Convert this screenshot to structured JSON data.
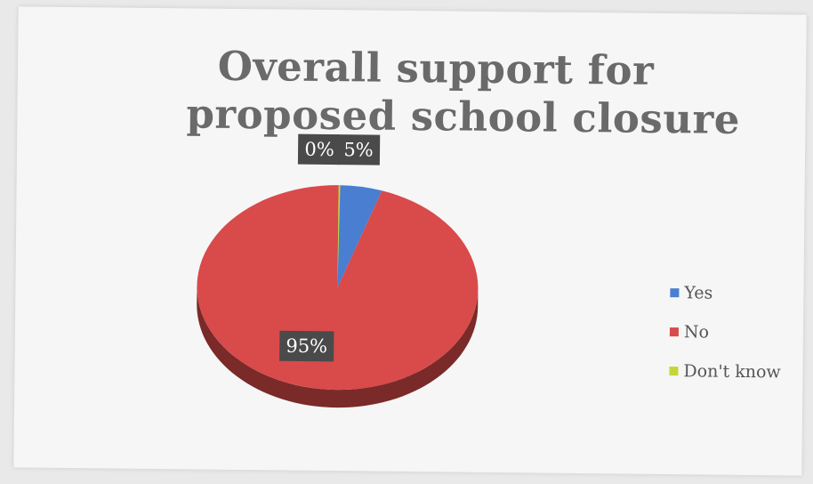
{
  "page": {
    "top_fragment": ""
  },
  "chart_data": {
    "type": "pie",
    "title": "Overall support for proposed school closure",
    "title_lines": [
      "Overall support for",
      "proposed school closure"
    ],
    "categories": [
      "Yes",
      "No",
      "Don't know"
    ],
    "values": [
      5,
      95,
      0
    ],
    "data_labels": [
      "5%",
      "95%",
      "0%"
    ],
    "colors": [
      "#4a7ed1",
      "#d94a4a",
      "#c4d63a"
    ],
    "side_color": "#7a2a28",
    "legend": [
      "Yes",
      "No",
      "Don't know"
    ],
    "legend_position": "right",
    "style": "3d"
  }
}
